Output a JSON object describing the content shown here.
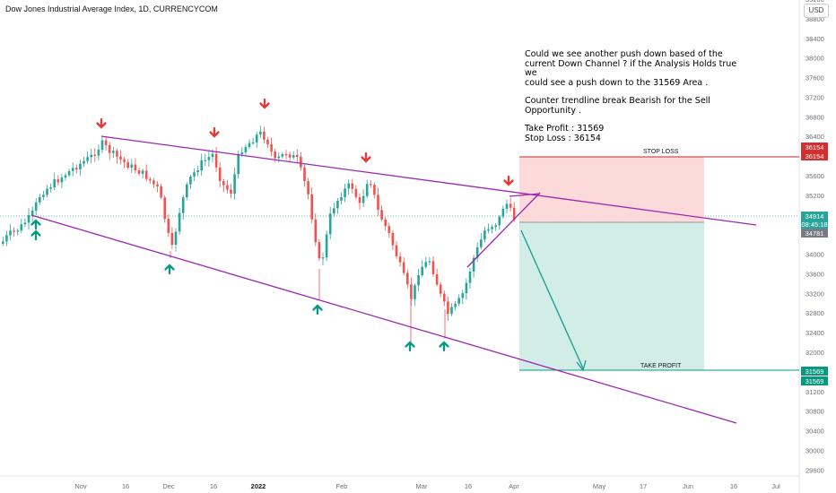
{
  "header": {
    "title": "Dow Jones Industrial Average Index, 1D, CURRENCYCOM",
    "currency": "USD"
  },
  "annotation": {
    "lines": [
      "Could we see another push down based of the",
      "current Down Channel ? if the Analysis Holds true we",
      "could see a push down to the 31569 Area .",
      "",
      "Counter trendline break Bearish for the Sell",
      "Opportunity .",
      "",
      "Take Profit : 31569",
      "Stop Loss   : 36154"
    ]
  },
  "chart_data": {
    "type": "candlestick",
    "title": "Dow Jones Industrial Average Index, 1D, CURRENCYCOM",
    "y_ticks": [
      29600,
      30000,
      30400,
      30800,
      31200,
      31600,
      32000,
      32400,
      32800,
      33200,
      33600,
      34000,
      34400,
      34800,
      35200,
      35600,
      36000,
      36400,
      36800,
      37200,
      37600,
      38000,
      38400,
      38800,
      39200
    ],
    "x_ticks": [
      "Nov",
      "16",
      "Dec",
      "16",
      "2022",
      "Feb",
      "Mar",
      "16",
      "Apr",
      "May",
      "17",
      "Jun",
      "16",
      "Jul"
    ],
    "bold_x_ticks": [
      "2022"
    ],
    "ylim": [
      29400,
      39450
    ],
    "price_labels": [
      {
        "text": "36154",
        "value": 36154,
        "color": "#d32f2f"
      },
      {
        "text": "36154",
        "value": 36154,
        "color": "#d32f2f"
      },
      {
        "text": "34914",
        "value": 34914,
        "color": "#26a69a"
      },
      {
        "text": "08:45:18",
        "value": 34914,
        "color": "#26a69a"
      },
      {
        "text": "34781",
        "value": 34781,
        "color": "#787b86"
      },
      {
        "text": "31569",
        "value": 31569,
        "color": "#089981"
      },
      {
        "text": "31569",
        "value": 31569,
        "color": "#089981"
      }
    ],
    "position": {
      "entry": 34781,
      "stop_loss": 36154,
      "take_profit": 31569,
      "stop_label": "STOP LOSS",
      "target_label": "TAKE PROFIT"
    },
    "arrows": {
      "down_count": 5,
      "up_count": 6
    },
    "colors": {
      "bull": "#26a69a",
      "bear": "#ef5350",
      "channel": "#9c27b0",
      "stop_zone": "#fcd4d4",
      "profit_zone": "#cdebe6",
      "stop_line": "#c62828",
      "target_line": "#089981"
    }
  }
}
